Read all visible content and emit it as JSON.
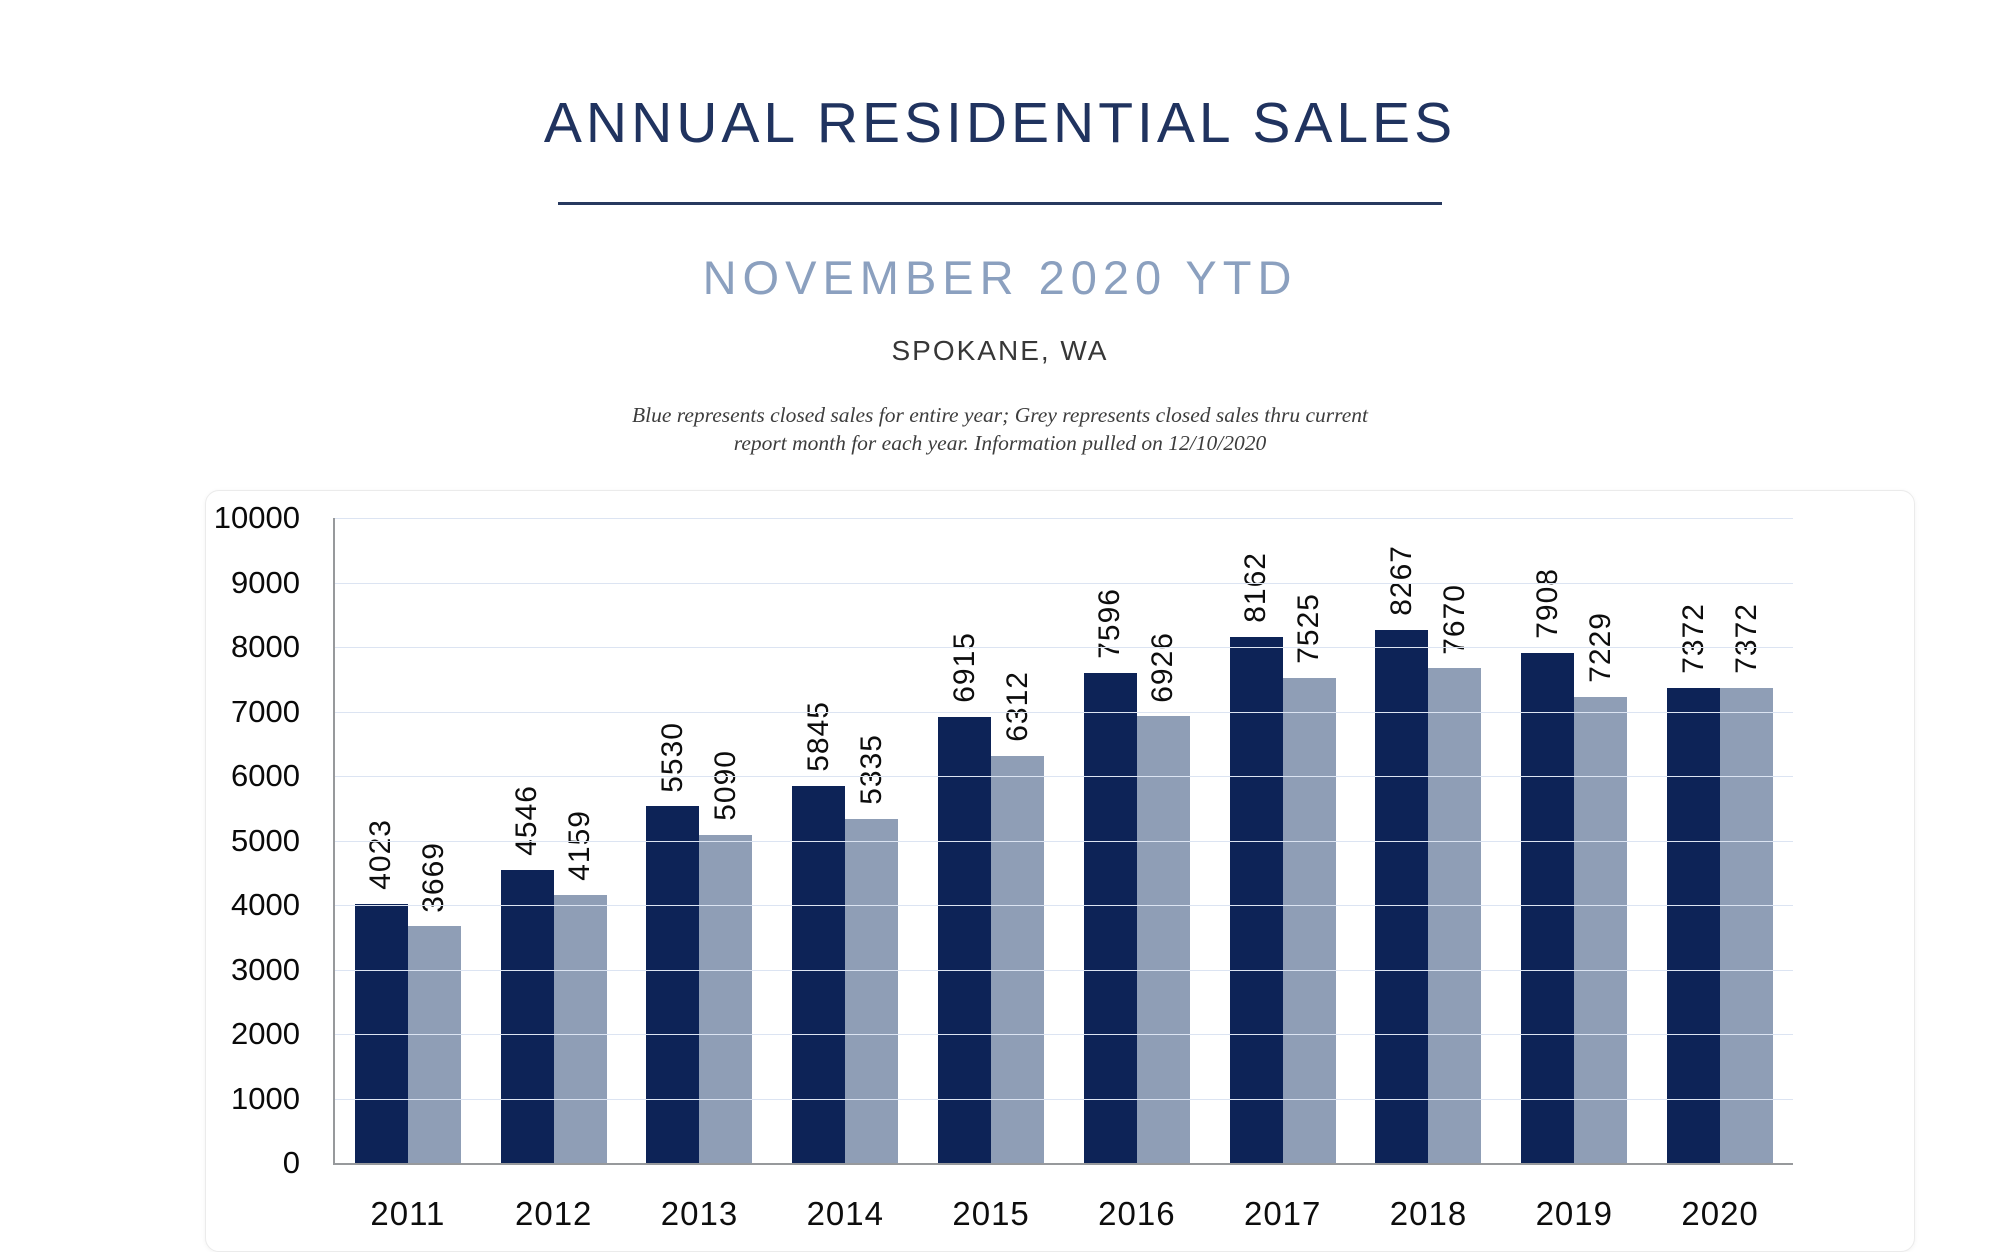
{
  "header": {
    "title": "ANNUAL RESIDENTIAL SALES",
    "subtitle": "NOVEMBER 2020 YTD",
    "location": "SPOKANE, WA",
    "note_line1": "Blue represents closed sales for entire year; Grey represents closed sales thru current",
    "note_line2": "report month for each year.  Information pulled on 12/10/2020"
  },
  "colors": {
    "navy_bar": "#0d2357",
    "grey_bar": "#8f9eb6",
    "title_navy": "#20335f",
    "subtitle_grey": "#8ba0bf",
    "gridline": "#dce4f2",
    "axis_line": "#97999c",
    "label_text": "#0d0d0d"
  },
  "chart_data": {
    "type": "bar",
    "title": "Annual Residential Sales - November 2020 YTD - Spokane, WA",
    "categories": [
      "2011",
      "2012",
      "2013",
      "2014",
      "2015",
      "2016",
      "2017",
      "2018",
      "2019",
      "2020"
    ],
    "series": [
      {
        "name": "Closed sales for entire year (Blue)",
        "color_key": "navy_bar",
        "values": [
          4023,
          4546,
          5530,
          5845,
          6915,
          7596,
          8162,
          8267,
          7908,
          7372
        ]
      },
      {
        "name": "Closed sales thru current report month (Grey)",
        "color_key": "grey_bar",
        "values": [
          3669,
          4159,
          5090,
          5335,
          6312,
          6926,
          7525,
          7670,
          7229,
          7372
        ]
      }
    ],
    "xlabel": "",
    "ylabel": "",
    "ylim": [
      0,
      10000
    ],
    "ytick_interval": 1000,
    "grid": true,
    "legend_position": "none",
    "value_labels": "rotated-90-above-bars",
    "info_pulled_on": "12/10/2020"
  }
}
